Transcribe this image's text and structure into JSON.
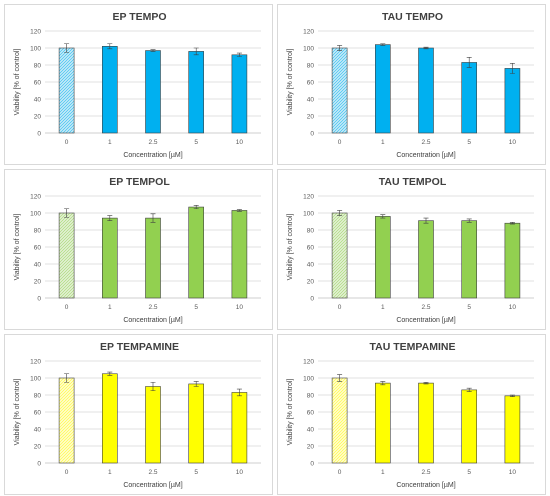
{
  "colors": {
    "ep_tempo": "#00b0f0",
    "ep_tempo_ctrl": "#c6e9f7",
    "tau_tempo": "#00b0f0",
    "ep_tempol": "#92d050",
    "ep_tempol_ctrl": "#e2f0d4",
    "tau_tempol": "#92d050",
    "ep_tempamine": "#ffff00",
    "ep_tempamine_ctrl": "#fffbd0",
    "tau_tempamine": "#ffff00",
    "bar_outline": "#404040",
    "gridline": "#d9d9d9"
  },
  "chart_data": [
    {
      "type": "bar",
      "title": "EP TEMPO",
      "xlabel": "Concentration [µM]",
      "ylabel": "Viability [% of control]",
      "categories": [
        "0",
        "1",
        "2.5",
        "5",
        "10"
      ],
      "values": [
        100,
        102,
        97,
        96,
        92
      ],
      "errors": [
        5,
        3,
        1,
        4,
        2
      ],
      "ylim": [
        0,
        120
      ],
      "yticks": [
        "0",
        "20",
        "40",
        "60",
        "80",
        "100",
        "120"
      ],
      "grid": true,
      "first_bar_hatched": true
    },
    {
      "type": "bar",
      "title": "TAU TEMPO",
      "xlabel": "Concentration [µM]",
      "ylabel": "Viability [% of control]",
      "categories": [
        "0",
        "1",
        "2.5",
        "5",
        "10"
      ],
      "values": [
        100,
        104,
        100,
        83,
        76
      ],
      "errors": [
        3,
        1,
        1,
        6,
        6
      ],
      "ylim": [
        0,
        120
      ],
      "yticks": [
        "0",
        "20",
        "40",
        "60",
        "80",
        "100",
        "120"
      ],
      "grid": true,
      "first_bar_hatched": true
    },
    {
      "type": "bar",
      "title": "EP TEMPOL",
      "xlabel": "Concentration [µM]",
      "ylabel": "Viability [% of control]",
      "categories": [
        "0",
        "1",
        "2.5",
        "5",
        "10"
      ],
      "values": [
        100,
        94,
        94,
        107,
        103
      ],
      "errors": [
        5,
        3,
        5,
        2,
        1
      ],
      "ylim": [
        0,
        120
      ],
      "yticks": [
        "0",
        "20",
        "40",
        "60",
        "80",
        "100",
        "120"
      ],
      "grid": true,
      "first_bar_hatched": true
    },
    {
      "type": "bar",
      "title": "TAU TEMPOL",
      "xlabel": "Concentration [µM]",
      "ylabel": "Viability [% of control]",
      "categories": [
        "0",
        "1",
        "2.5",
        "5",
        "10"
      ],
      "values": [
        100,
        96,
        91,
        91,
        88
      ],
      "errors": [
        3,
        2,
        3,
        2,
        1
      ],
      "ylim": [
        0,
        120
      ],
      "yticks": [
        "0",
        "20",
        "40",
        "60",
        "80",
        "100",
        "120"
      ],
      "grid": true,
      "first_bar_hatched": true
    },
    {
      "type": "bar",
      "title": "EP TEMPAMINE",
      "xlabel": "Concentration [µM]",
      "ylabel": "Viability [% of control]",
      "categories": [
        "0",
        "1",
        "2.5",
        "5",
        "10"
      ],
      "values": [
        100,
        105,
        90,
        93,
        83
      ],
      "errors": [
        5,
        2,
        5,
        3,
        4
      ],
      "ylim": [
        0,
        120
      ],
      "yticks": [
        "0",
        "20",
        "40",
        "60",
        "80",
        "100",
        "120"
      ],
      "grid": true,
      "first_bar_hatched": true
    },
    {
      "type": "bar",
      "title": "TAU TEMPAMINE",
      "xlabel": "Concentration [µM]",
      "ylabel": "Viability [% of control]",
      "categories": [
        "0",
        "1",
        "2.5",
        "5",
        "10"
      ],
      "values": [
        100,
        94,
        94,
        86,
        79
      ],
      "errors": [
        4,
        2,
        1,
        2,
        1
      ],
      "ylim": [
        0,
        120
      ],
      "yticks": [
        "0",
        "20",
        "40",
        "60",
        "80",
        "100",
        "120"
      ],
      "grid": true,
      "first_bar_hatched": true
    }
  ]
}
